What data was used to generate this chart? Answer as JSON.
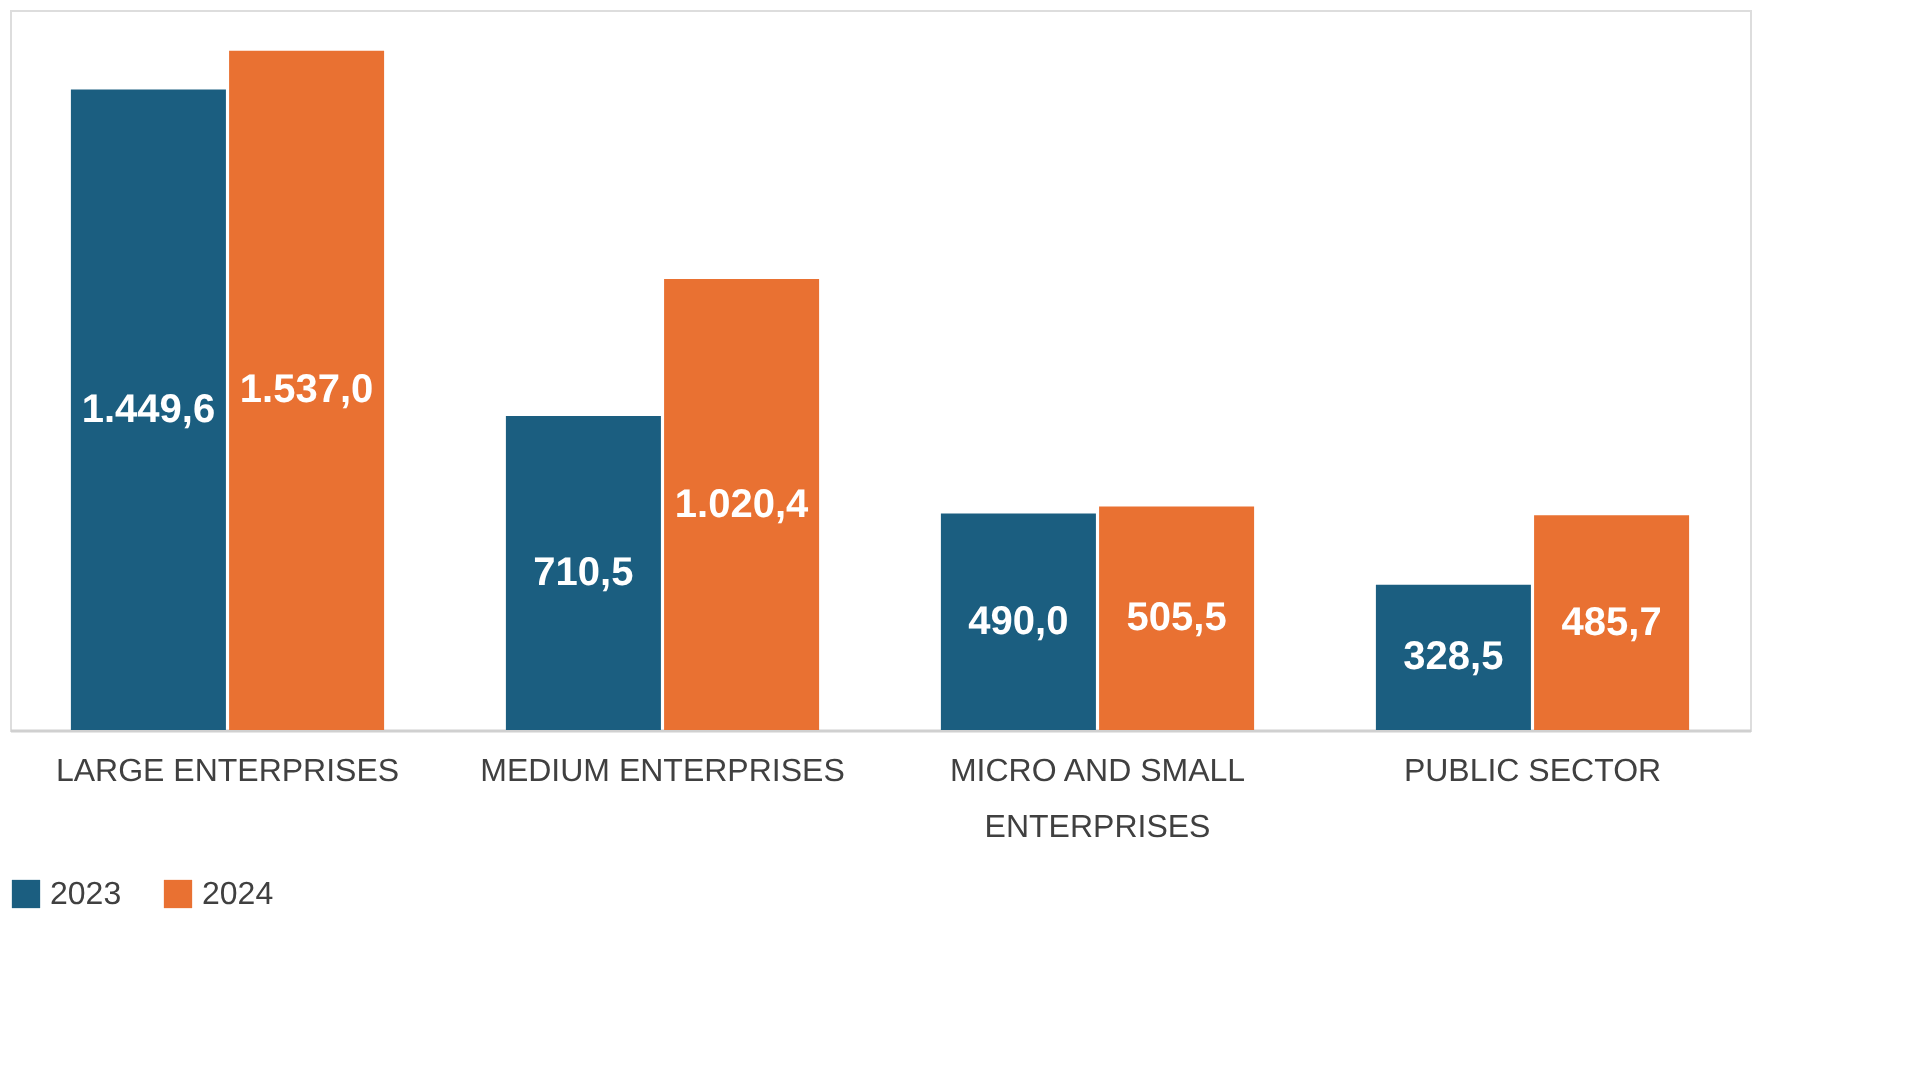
{
  "chart_data": {
    "type": "bar",
    "categories": [
      "LARGE ENTERPRISES",
      "MEDIUM ENTERPRISES",
      "MICRO AND SMALL ENTERPRISES",
      "PUBLIC SECTOR"
    ],
    "series": [
      {
        "name": "2023",
        "color": "#1b5e80",
        "values": [
          1449.6,
          710.5,
          490.0,
          328.5
        ],
        "value_labels": [
          "1.449,6",
          "710,5",
          "490,0",
          "328,5"
        ]
      },
      {
        "name": "2024",
        "color": "#e97132",
        "values": [
          1537.0,
          1020.4,
          505.5,
          485.7
        ],
        "value_labels": [
          "1.537,0",
          "1.020,4",
          "505,5",
          "485,7"
        ]
      }
    ],
    "legend": "bottom",
    "grid": false
  }
}
